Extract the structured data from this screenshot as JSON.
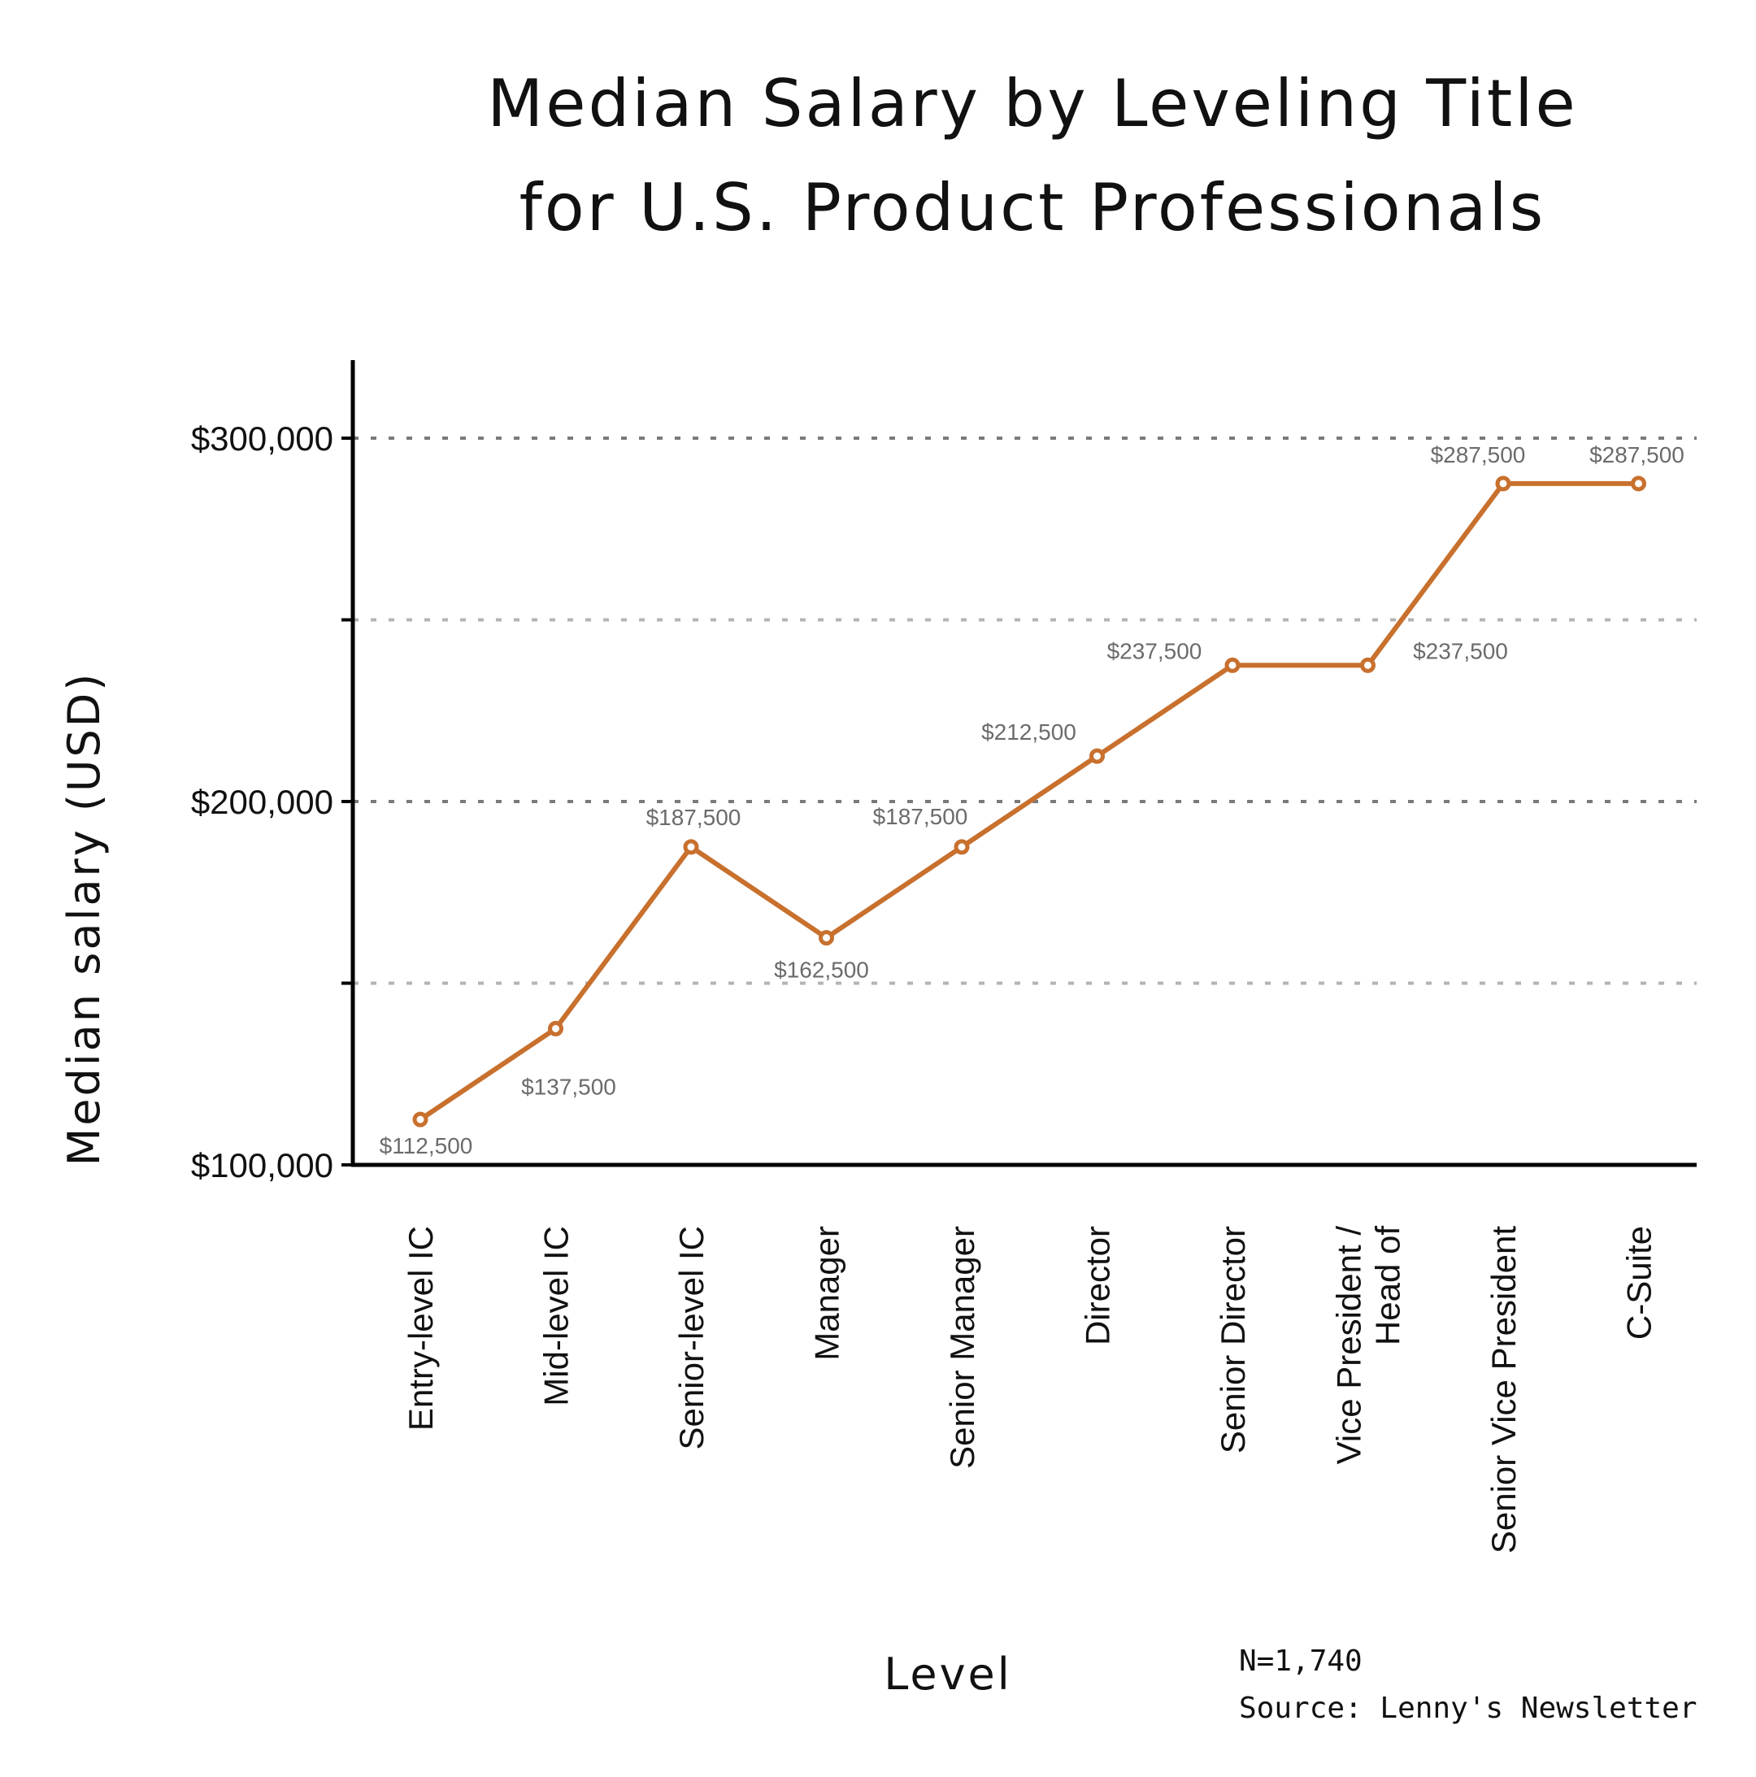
{
  "chart_data": {
    "type": "line",
    "title_lines": [
      "Median Salary by Leveling Title",
      "for U.S. Product Professionals"
    ],
    "xlabel": "Level",
    "ylabel": "Median salary (USD)",
    "categories": [
      "Entry-level IC",
      "Mid-level IC",
      "Senior-level IC",
      "Manager",
      "Senior Manager",
      "Director",
      "Senior Director",
      "Vice President / Head of",
      "Senior Vice President",
      "C-Suite"
    ],
    "values": [
      112500,
      137500,
      187500,
      162500,
      187500,
      212500,
      237500,
      237500,
      287500,
      287500
    ],
    "data_labels": [
      "$112,500",
      "$137,500",
      "$187,500",
      "$162,500",
      "$187,500",
      "$212,500",
      "$237,500",
      "$237,500",
      "$287,500",
      "$287,500"
    ],
    "ylim": [
      100000,
      320000
    ],
    "yticks": [
      100000,
      200000,
      300000
    ],
    "ytick_labels": [
      "$100,000",
      "$200,000",
      "$300,000"
    ],
    "gridlines": [
      150000,
      200000,
      250000,
      300000
    ],
    "grid": true,
    "line_color": "#c8702d",
    "annotations": [
      "N=1,740",
      "Source: Lenny's Newsletter"
    ]
  }
}
